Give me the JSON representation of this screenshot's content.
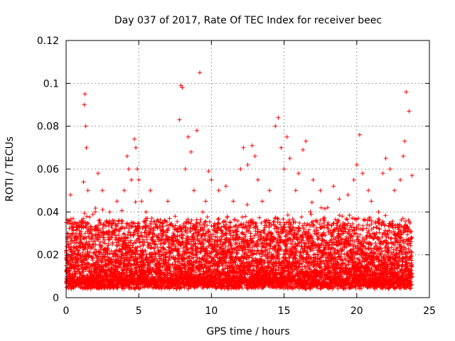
{
  "chart_data": {
    "type": "scatter",
    "title": "Day 037 of 2017, Rate Of TEC Index for receiver beec",
    "xlabel": "GPS time / hours",
    "ylabel": "ROTI / TECUs",
    "xlim": [
      0,
      25
    ],
    "ylim": [
      0,
      0.12
    ],
    "xticks": [
      0,
      5,
      10,
      15,
      20,
      25
    ],
    "xtick_labels": [
      "0",
      "5",
      "10",
      "15",
      "20",
      "25"
    ],
    "yticks": [
      0,
      0.02,
      0.04,
      0.06,
      0.08,
      0.1,
      0.12
    ],
    "ytick_labels": [
      "0",
      "0.02",
      "0.04",
      "0.06",
      "0.08",
      "0.1",
      "0.12"
    ],
    "grid": true,
    "marker": "+",
    "color": "#ff0000",
    "series": [
      {
        "name": "ROTI",
        "x": [
          0.05,
          0.1,
          0.15,
          0.2,
          0.3,
          0.4,
          0.5,
          0.6,
          0.8,
          1.0,
          1.2,
          1.25,
          1.3,
          1.35,
          1.4,
          1.5,
          1.6,
          1.8,
          2.0,
          2.2,
          2.5,
          2.8,
          3.0,
          3.2,
          3.5,
          3.8,
          4.0,
          4.2,
          4.3,
          4.5,
          4.7,
          4.8,
          4.9,
          5.0,
          5.2,
          5.5,
          5.8,
          6.0,
          6.5,
          7.0,
          7.5,
          7.8,
          7.9,
          8.0,
          8.2,
          8.4,
          8.6,
          8.8,
          9.0,
          9.2,
          9.4,
          9.6,
          9.8,
          10.0,
          10.5,
          11.0,
          11.5,
          12.0,
          12.2,
          12.5,
          12.8,
          13.0,
          13.2,
          13.5,
          14.0,
          14.4,
          14.6,
          14.8,
          15.0,
          15.2,
          15.4,
          15.8,
          16.0,
          16.3,
          16.5,
          17.0,
          17.5,
          18.0,
          18.4,
          18.8,
          19.0,
          19.4,
          19.8,
          20.0,
          20.2,
          20.4,
          20.8,
          21.0,
          21.5,
          21.8,
          22.0,
          22.3,
          22.6,
          23.0,
          23.2,
          23.3,
          23.4,
          23.6,
          23.8
        ],
        "y": [
          0.012,
          0.03,
          0.02,
          0.036,
          0.048,
          0.018,
          0.015,
          0.01,
          0.02,
          0.035,
          0.054,
          0.09,
          0.095,
          0.08,
          0.07,
          0.05,
          0.03,
          0.025,
          0.04,
          0.058,
          0.05,
          0.035,
          0.04,
          0.03,
          0.045,
          0.036,
          0.05,
          0.066,
          0.06,
          0.055,
          0.074,
          0.07,
          0.06,
          0.055,
          0.045,
          0.04,
          0.05,
          0.032,
          0.03,
          0.045,
          0.038,
          0.083,
          0.099,
          0.098,
          0.06,
          0.075,
          0.068,
          0.05,
          0.078,
          0.105,
          0.04,
          0.045,
          0.059,
          0.055,
          0.05,
          0.052,
          0.045,
          0.06,
          0.07,
          0.062,
          0.071,
          0.066,
          0.055,
          0.045,
          0.05,
          0.08,
          0.084,
          0.07,
          0.06,
          0.075,
          0.065,
          0.05,
          0.058,
          0.069,
          0.073,
          0.055,
          0.05,
          0.042,
          0.052,
          0.046,
          0.038,
          0.048,
          0.055,
          0.062,
          0.076,
          0.058,
          0.05,
          0.045,
          0.04,
          0.058,
          0.065,
          0.06,
          0.05,
          0.055,
          0.066,
          0.073,
          0.096,
          0.087,
          0.057
        ]
      }
    ]
  }
}
